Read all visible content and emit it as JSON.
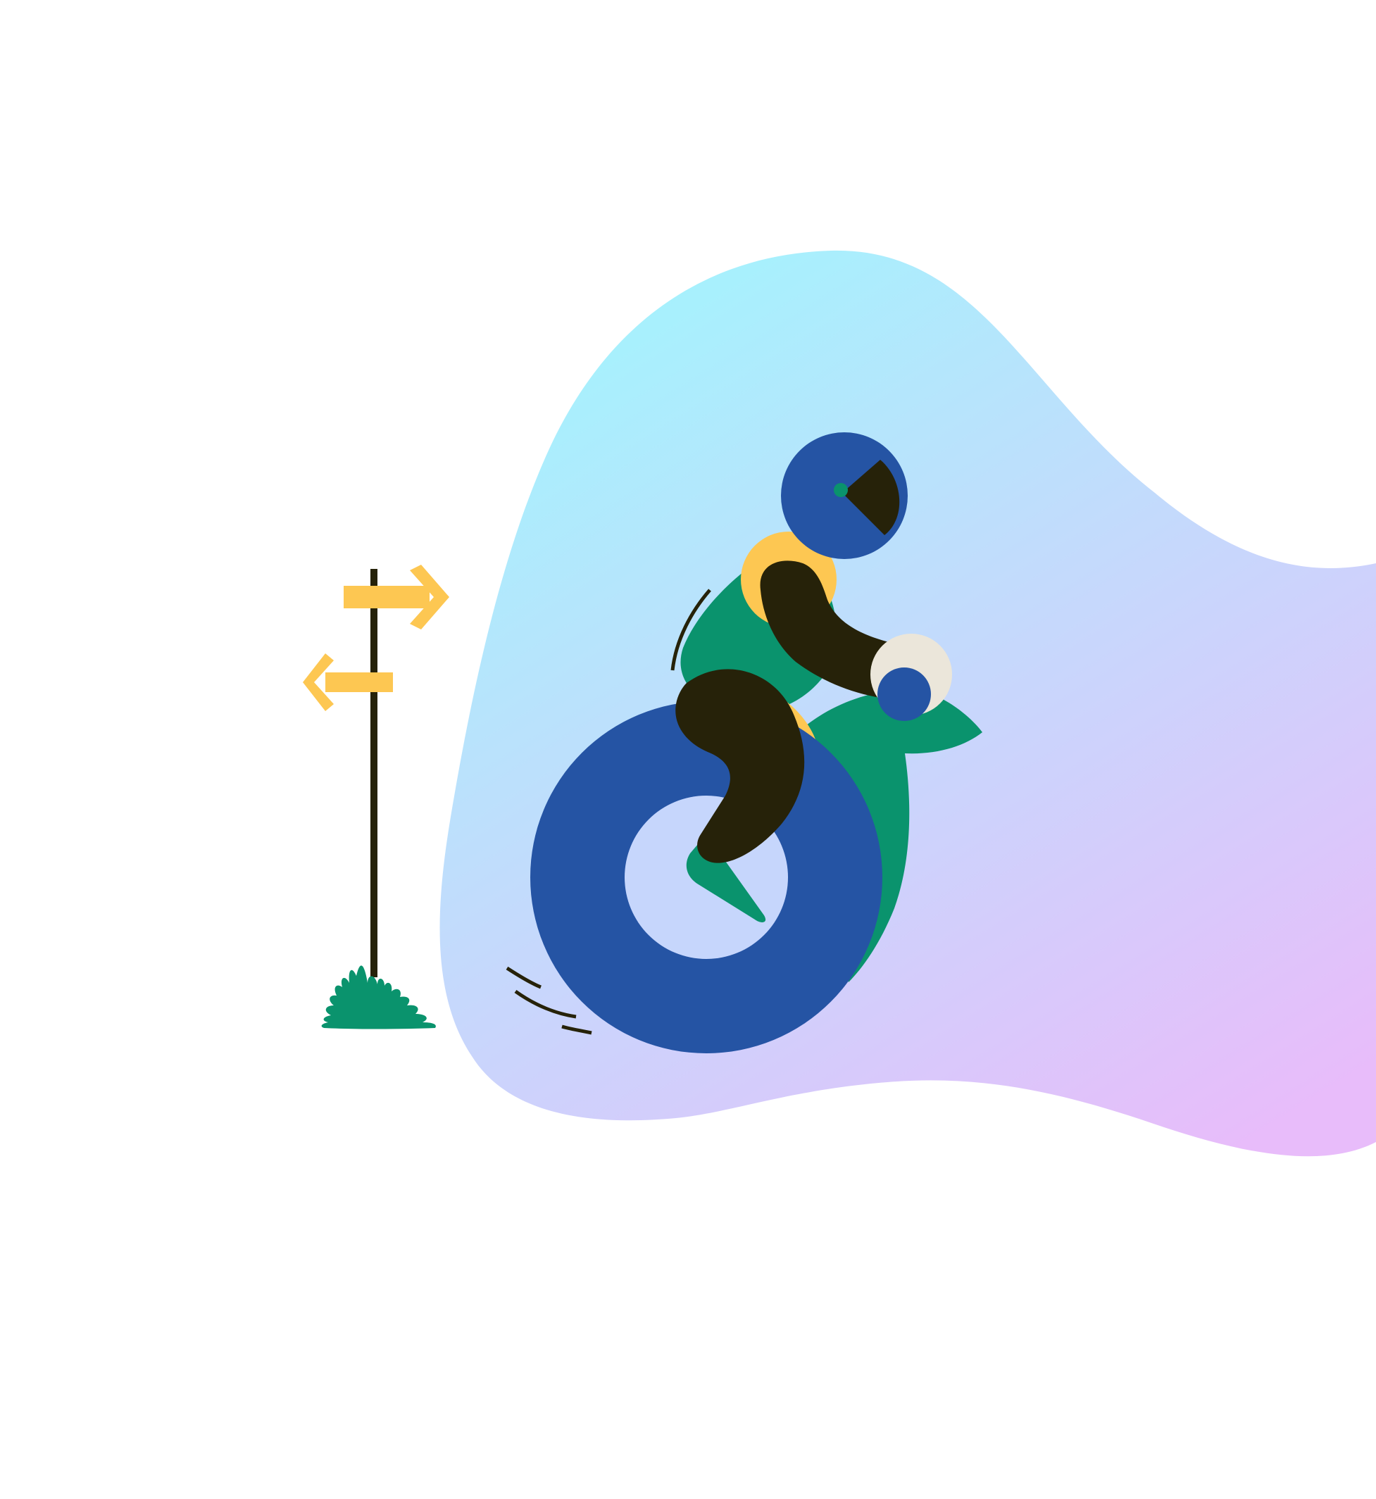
{
  "illustration": {
    "subject": "rider-on-wheel",
    "colors": {
      "background": "#ffffff",
      "blob_top": "#a3f4fd",
      "blob_mid": "#c6d8fc",
      "blob_bottom": "#e8bcfa",
      "tire_blue": "#2554a4",
      "green": "#0a936d",
      "dark": "#262209",
      "yellow": "#fdc752",
      "cream": "#ebe6da"
    },
    "icons": [
      "signpost-icon",
      "arrow-right-icon",
      "arrow-left-icon",
      "bush-icon",
      "helmet-icon",
      "wheel-icon",
      "motion-lines-icon"
    ]
  }
}
